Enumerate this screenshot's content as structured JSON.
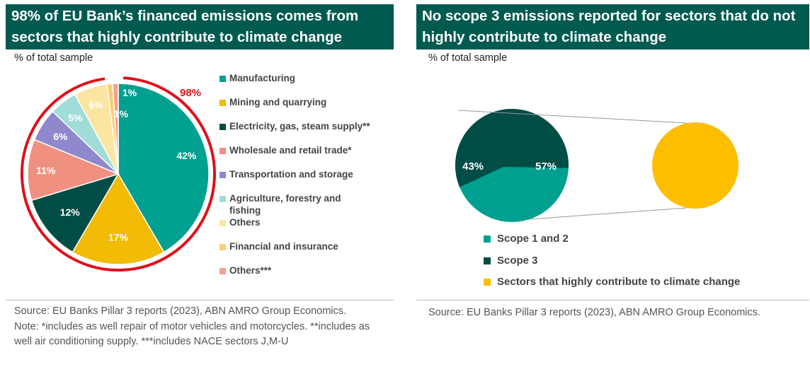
{
  "colors": {
    "header_bg": "#005a50",
    "manufacturing": "#00a090",
    "mining": "#f2bb05",
    "electricity": "#004d45",
    "wholesale": "#f09080",
    "transport": "#9088cc",
    "agriculture": "#a0dcd8",
    "others": "#fae6a0",
    "financial": "#f7d070",
    "others3": "#f4a090",
    "highlight": "#e0101a",
    "scope12": "#00a090",
    "scope3": "#004d45",
    "sectors": "#fdbe00"
  },
  "left": {
    "title": "98% of EU Bank’s financed emissions comes from sectors that highly contribute to climate change",
    "subtitle": "% of total sample",
    "source": "Source: EU Banks Pillar 3 reports (2023), ABN AMRO Group Economics.",
    "note": "Note: *includes as well repair of motor vehicles and motorcycles. **includes as well air conditioning supply. ***includes NACE sectors J,M-U"
  },
  "right": {
    "title": "No scope 3 emissions reported for sectors that do not highly contribute to climate change",
    "subtitle": "% of total sample",
    "source": "Source:  EU Banks Pillar 3 reports (2023), ABN AMRO Group Economics."
  },
  "chart_data": [
    {
      "type": "pie",
      "title": "98% of EU Bank’s financed emissions comes from sectors that highly contribute to climate change",
      "unit": "% of total sample",
      "highlight_label": "98%",
      "slices": [
        {
          "label": "Manufacturing",
          "value": 42,
          "display": "42%",
          "color": "#00a090",
          "text_color": "#ffffff"
        },
        {
          "label": "Mining and quarrying",
          "value": 17,
          "display": "17%",
          "color": "#f2bb05",
          "text_color": "#ffffff"
        },
        {
          "label": "Electricity, gas, steam supply**",
          "value": 12,
          "display": "12%",
          "color": "#004d45",
          "text_color": "#ffffff"
        },
        {
          "label": "Wholesale and retail trade*",
          "value": 11,
          "display": "11%",
          "color": "#f09080",
          "text_color": "#ffffff"
        },
        {
          "label": "Transportation and storage",
          "value": 6,
          "display": "6%",
          "color": "#9088cc",
          "text_color": "#ffffff"
        },
        {
          "label": "Agriculture, forestry and fishing",
          "value": 5,
          "display": "5%",
          "color": "#a0dcd8",
          "text_color": "#ffffff"
        },
        {
          "label": "Others",
          "value": 6,
          "display": "6%",
          "color": "#fae6a0",
          "text_color": "#ffffff"
        },
        {
          "label": "Financial and insurance",
          "value": 1,
          "display": "1%",
          "color": "#f7d070",
          "text_color": "#ffffff"
        },
        {
          "label": "Others***",
          "value": 1,
          "display": "1%",
          "color": "#f4a090",
          "text_color": "#ffffff"
        }
      ]
    },
    {
      "type": "pie",
      "title": "No scope 3 emissions reported for sectors that do not highly contribute to climate change",
      "unit": "% of total sample",
      "slices": [
        {
          "label": "Scope 1 and 2",
          "value": 43,
          "display": "43%",
          "color": "#00a090"
        },
        {
          "label": "Scope 3",
          "value": 57,
          "display": "57%",
          "color": "#004d45"
        }
      ],
      "detail_circle": {
        "label": "Sectors that highly contribute to climate change",
        "color": "#fdbe00"
      }
    }
  ]
}
